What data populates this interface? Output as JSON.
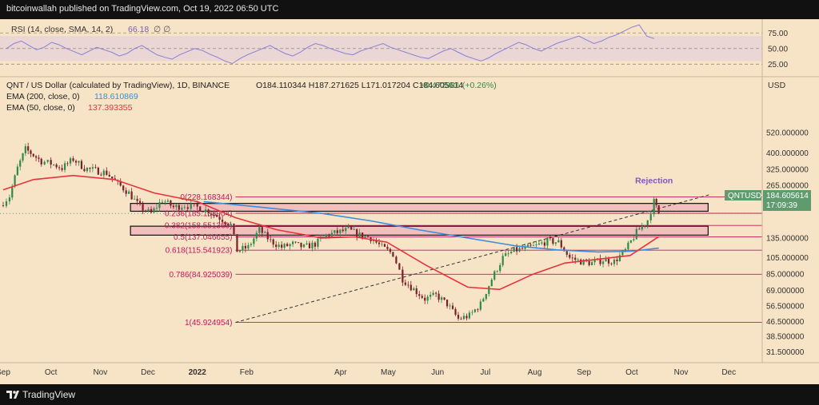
{
  "header": {
    "published": "bitcoinwallah published on TradingView.com, Oct 19, 2022 06:50 UTC"
  },
  "footer": {
    "brand": "TradingView"
  },
  "rsi": {
    "title": "RSI (14, close, SMA, 14, 2)",
    "value": "66.18",
    "extra": "∅  ∅",
    "axis_labels": [
      "75.00",
      "50.00",
      "25.00"
    ],
    "axis_values": [
      75,
      50,
      25
    ],
    "band": [
      30,
      70
    ],
    "range": [
      10,
      92
    ],
    "values": [
      50,
      58,
      62,
      55,
      48,
      52,
      60,
      56,
      50,
      45,
      40,
      46,
      52,
      48,
      44,
      38,
      42,
      50,
      55,
      47,
      40,
      36,
      33,
      40,
      45,
      50,
      47,
      41,
      36,
      30,
      26,
      34,
      40,
      45,
      50,
      55,
      48,
      42,
      38,
      44,
      52,
      58,
      55,
      50,
      46,
      42,
      40,
      46,
      50,
      54,
      58,
      52,
      48,
      44,
      40,
      36,
      34,
      40,
      46,
      50,
      44,
      38,
      34,
      30,
      35,
      42,
      48,
      54,
      60,
      56,
      50,
      46,
      52,
      58,
      62,
      66,
      70,
      64,
      58,
      62,
      68,
      72,
      78,
      84,
      88,
      70,
      66
    ]
  },
  "legend": {
    "symbol": "QNT / US Dollar (calculated by TradingView), 1D, BINANCE",
    "ohlc": "O184.110344  H187.271625  L171.017204  C184.605614",
    "change": "+0.472981 (+0.26%)",
    "ema200_label": "EMA (200, close, 0)",
    "ema200_value": "118.610869",
    "ema50_label": "EMA (50, close, 0)",
    "ema50_value": "137.393355"
  },
  "price_axis": {
    "currency": "USD",
    "ticks": [
      "520.000000",
      "400.000000",
      "325.000000",
      "265.000000",
      "205.000000",
      "135.000000",
      "105.000000",
      "85.000000",
      "69.000000",
      "56.500000",
      "46.500000",
      "38.500000",
      "31.500000"
    ],
    "tick_values": [
      520,
      400,
      325,
      265,
      205,
      135,
      105,
      85,
      69,
      56.5,
      46.5,
      38.5,
      31.5
    ],
    "symbol_tag": "QNTUSD",
    "last_price": "184.605614",
    "countdown": "17:09:39"
  },
  "time_axis": {
    "labels": [
      "Sep",
      "Oct",
      "Nov",
      "Dec",
      "2022",
      "Feb",
      "Apr",
      "May",
      "Jun",
      "Jul",
      "Aug",
      "Sep",
      "Oct",
      "Nov",
      "Dec"
    ],
    "dates": [
      "2021-09-01",
      "2021-10-01",
      "2021-11-01",
      "2021-12-01",
      "2022-01-01",
      "2022-02-01",
      "2022-04-01",
      "2022-05-01",
      "2022-06-01",
      "2022-07-01",
      "2022-08-01",
      "2022-09-01",
      "2022-10-01",
      "2022-11-01",
      "2022-12-01"
    ]
  },
  "colors": {
    "ema200": "#3c8de0",
    "ema50": "#e8323c",
    "fib": "#c2185b",
    "zone_fill": "#f2b3b8",
    "candle_up": "#2f8a4a",
    "candle_down": "#7b1f2a",
    "rsi_line": "#8a7fd6",
    "tag_bg": "#5f9b6e"
  },
  "chart_data": {
    "type": "candlestick",
    "title": "QNT / US Dollar (calculated by TradingView), 1D, BINANCE",
    "scale": "log",
    "ylim": [
      28,
      650
    ],
    "xlim": [
      "2021-08-30",
      "2022-12-22"
    ],
    "fib_levels": [
      {
        "label": "0(228.168344)",
        "value": 228.168344
      },
      {
        "label": "0.236(185.158904)",
        "value": 185.158904
      },
      {
        "label": "0.382(158.551369)",
        "value": 158.551369
      },
      {
        "label": "0.5(137.046655)",
        "value": 137.046655
      },
      {
        "label": "0.618(115.541923)",
        "value": 115.541923
      },
      {
        "label": "0.786(84.925039)",
        "value": 84.925039
      },
      {
        "label": "1(45.924954)",
        "value": 45.924954
      }
    ],
    "fib_start": "2022-01-25",
    "fib_end": "2022-12-22",
    "zones": [
      {
        "from": "2021-11-20",
        "to": "2022-11-18",
        "low": 190,
        "high": 210
      },
      {
        "from": "2021-11-20",
        "to": "2022-11-18",
        "low": 140,
        "high": 157
      }
    ],
    "trendline": {
      "points": [
        [
          "2022-01-25",
          45.9
        ],
        [
          "2022-11-20",
          236
        ]
      ]
    },
    "annotation": {
      "text": "Rejection",
      "date": "2022-10-15",
      "value": 245
    },
    "series": [
      {
        "name": "QNTUSD",
        "points": [
          [
            "2021-08-30",
            205
          ],
          [
            "2021-09-05",
            230
          ],
          [
            "2021-09-10",
            330
          ],
          [
            "2021-09-15",
            420
          ],
          [
            "2021-09-20",
            390
          ],
          [
            "2021-09-25",
            360
          ],
          [
            "2021-10-01",
            350
          ],
          [
            "2021-10-08",
            330
          ],
          [
            "2021-10-15",
            370
          ],
          [
            "2021-10-22",
            330
          ],
          [
            "2021-10-29",
            320
          ],
          [
            "2021-11-05",
            310
          ],
          [
            "2021-11-12",
            270
          ],
          [
            "2021-11-19",
            240
          ],
          [
            "2021-11-26",
            200
          ],
          [
            "2021-12-03",
            185
          ],
          [
            "2021-12-10",
            220
          ],
          [
            "2021-12-17",
            200
          ],
          [
            "2021-12-24",
            205
          ],
          [
            "2022-01-01",
            200
          ],
          [
            "2022-01-08",
            190
          ],
          [
            "2022-01-15",
            175
          ],
          [
            "2022-01-22",
            160
          ],
          [
            "2022-01-26",
            115
          ],
          [
            "2022-02-02",
            120
          ],
          [
            "2022-02-09",
            150
          ],
          [
            "2022-02-16",
            130
          ],
          [
            "2022-02-23",
            120
          ],
          [
            "2022-03-02",
            125
          ],
          [
            "2022-03-09",
            120
          ],
          [
            "2022-03-16",
            125
          ],
          [
            "2022-03-23",
            140
          ],
          [
            "2022-03-30",
            145
          ],
          [
            "2022-04-06",
            150
          ],
          [
            "2022-04-13",
            140
          ],
          [
            "2022-04-20",
            135
          ],
          [
            "2022-04-27",
            120
          ],
          [
            "2022-05-04",
            110
          ],
          [
            "2022-05-10",
            80
          ],
          [
            "2022-05-17",
            70
          ],
          [
            "2022-05-24",
            62
          ],
          [
            "2022-05-31",
            65
          ],
          [
            "2022-06-07",
            58
          ],
          [
            "2022-06-14",
            48
          ],
          [
            "2022-06-21",
            50
          ],
          [
            "2022-06-28",
            58
          ],
          [
            "2022-07-05",
            80
          ],
          [
            "2022-07-12",
            105
          ],
          [
            "2022-07-19",
            115
          ],
          [
            "2022-07-26",
            118
          ],
          [
            "2022-08-02",
            122
          ],
          [
            "2022-08-09",
            130
          ],
          [
            "2022-08-16",
            128
          ],
          [
            "2022-08-23",
            105
          ],
          [
            "2022-08-30",
            100
          ],
          [
            "2022-09-06",
            98
          ],
          [
            "2022-09-13",
            102
          ],
          [
            "2022-09-20",
            100
          ],
          [
            "2022-09-27",
            115
          ],
          [
            "2022-10-04",
            145
          ],
          [
            "2022-10-11",
            170
          ],
          [
            "2022-10-15",
            215
          ],
          [
            "2022-10-18",
            184.6
          ]
        ]
      },
      {
        "name": "EMA (200, close, 0)",
        "points": [
          [
            "2022-01-05",
            215
          ],
          [
            "2022-02-10",
            200
          ],
          [
            "2022-03-20",
            185
          ],
          [
            "2022-04-20",
            168
          ],
          [
            "2022-05-20",
            150
          ],
          [
            "2022-06-20",
            135
          ],
          [
            "2022-07-20",
            122
          ],
          [
            "2022-08-15",
            116
          ],
          [
            "2022-09-10",
            113
          ],
          [
            "2022-10-01",
            114
          ],
          [
            "2022-10-18",
            118.6
          ]
        ]
      },
      {
        "name": "EMA (50, close, 0)",
        "points": [
          [
            "2021-09-01",
            250
          ],
          [
            "2021-09-20",
            285
          ],
          [
            "2021-10-15",
            300
          ],
          [
            "2021-11-10",
            285
          ],
          [
            "2021-12-05",
            240
          ],
          [
            "2022-01-01",
            215
          ],
          [
            "2022-01-25",
            175
          ],
          [
            "2022-02-20",
            150
          ],
          [
            "2022-03-20",
            135
          ],
          [
            "2022-04-10",
            137
          ],
          [
            "2022-04-30",
            128
          ],
          [
            "2022-05-25",
            95
          ],
          [
            "2022-06-20",
            72
          ],
          [
            "2022-07-10",
            70
          ],
          [
            "2022-07-31",
            85
          ],
          [
            "2022-08-20",
            98
          ],
          [
            "2022-09-10",
            103
          ],
          [
            "2022-09-30",
            108
          ],
          [
            "2022-10-18",
            137.4
          ]
        ]
      }
    ]
  }
}
